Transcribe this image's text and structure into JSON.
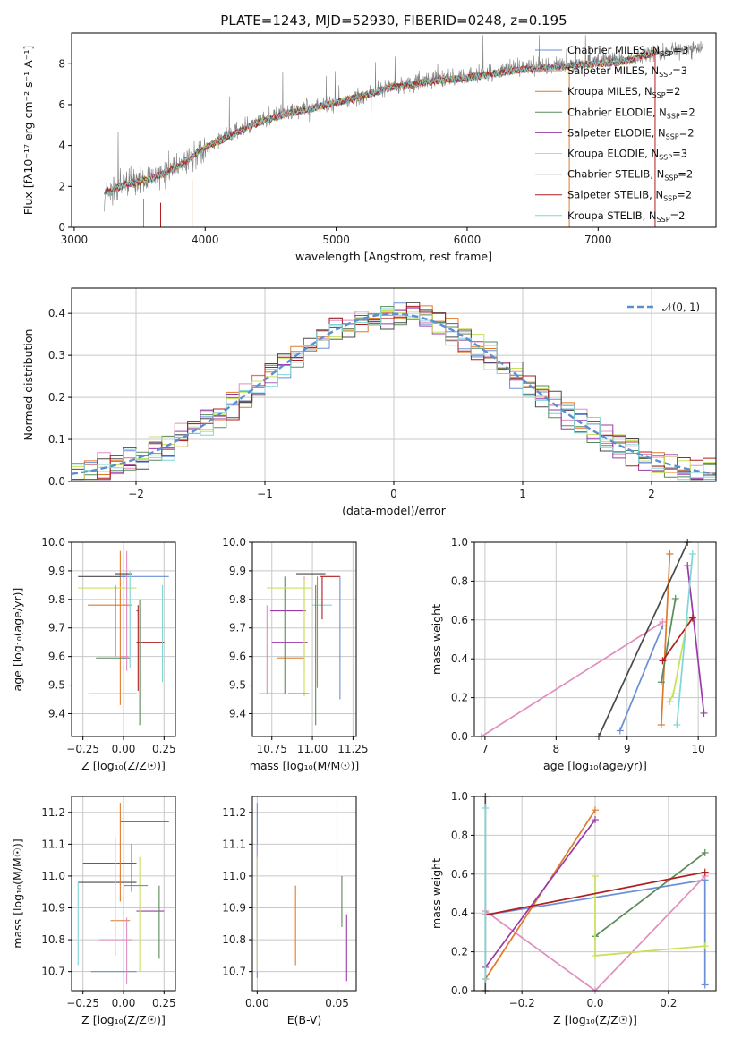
{
  "figure": {
    "title": "PLATE=1243, MJD=52930, FIBERID=0248, z=0.195"
  },
  "palette": {
    "Chabrier MILES": "#6a8fd6",
    "Salpeter MILES": "#e08fbf",
    "Kroupa MILES": "#e07a2a",
    "Chabrier ELODIE": "#5a8a5a",
    "Salpeter ELODIE": "#9a3aa8",
    "Kroupa ELODIE": "#c8e05a",
    "Chabrier STELIB": "#4a4a4a",
    "Salpeter STELIB": "#b01e1e",
    "Kroupa STELIB": "#7fd6d6",
    "observed": "#808080",
    "gaussian": "#5a8fd0",
    "grid": "#c8c8c8"
  },
  "legend": [
    {
      "name": "Chabrier MILES",
      "suffix": "=3"
    },
    {
      "name": "Salpeter MILES",
      "suffix": "=3"
    },
    {
      "name": "Kroupa MILES",
      "suffix": "=2"
    },
    {
      "name": "Chabrier ELODIE",
      "suffix": "=2"
    },
    {
      "name": "Salpeter ELODIE",
      "suffix": "=2"
    },
    {
      "name": "Kroupa ELODIE",
      "suffix": "=3"
    },
    {
      "name": "Chabrier STELIB",
      "suffix": "=2"
    },
    {
      "name": "Salpeter STELIB",
      "suffix": "=2"
    },
    {
      "name": "Kroupa STELIB",
      "suffix": "=2"
    }
  ],
  "chart_data": [
    {
      "id": "spectrum",
      "type": "line",
      "xlabel": "wavelength [Angstrom, rest frame]",
      "ylabel": "Flux [fλ10⁻¹⁷ erg cm⁻² s⁻¹ A⁻¹]",
      "xlim": [
        2980,
        7900
      ],
      "ylim": [
        0,
        9.5
      ],
      "xticks": [
        3000,
        4000,
        5000,
        6000,
        7000
      ],
      "yticks": [
        0,
        2,
        4,
        6,
        8
      ],
      "grid": false,
      "legend_loc": "upper right",
      "series": [
        {
          "name": "observed",
          "x": [
            3230,
            3400,
            3600,
            3800,
            4000,
            4200,
            4400,
            4600,
            4800,
            5000,
            5200,
            5400,
            5600,
            5800,
            6000,
            6200,
            6400,
            6600,
            6800,
            7000,
            7200,
            7400,
            7500,
            7600,
            7700,
            7800
          ],
          "values": [
            1.6,
            2.2,
            2.4,
            3.0,
            3.9,
            4.6,
            5.2,
            5.6,
            5.9,
            6.1,
            6.4,
            6.9,
            7.1,
            7.3,
            7.4,
            7.6,
            7.8,
            7.9,
            8.0,
            8.1,
            8.2,
            8.5,
            8.6,
            8.7,
            8.7,
            8.8
          ]
        },
        {
          "name": "model",
          "x": [
            3230,
            3400,
            3600,
            3800,
            4000,
            4200,
            4400,
            4600,
            4800,
            5000,
            5200,
            5400,
            5600,
            5800,
            6000,
            6200,
            6400,
            6600,
            6800,
            7000,
            7200,
            7400,
            7450
          ],
          "values": [
            1.7,
            2.1,
            2.4,
            3.0,
            3.9,
            4.5,
            5.1,
            5.5,
            5.8,
            6.1,
            6.4,
            6.8,
            7.0,
            7.2,
            7.3,
            7.5,
            7.7,
            7.8,
            7.9,
            8.0,
            8.1,
            8.5,
            8.6
          ]
        }
      ]
    },
    {
      "id": "residuals",
      "type": "line",
      "xlabel": "(data-model)/error",
      "ylabel": "Normed distribution",
      "xlim": [
        -2.5,
        2.5
      ],
      "ylim": [
        0,
        0.46
      ],
      "xticks": [
        -2,
        -1,
        0,
        1,
        2
      ],
      "yticks": [
        0.0,
        0.1,
        0.2,
        0.3,
        0.4
      ],
      "grid": true,
      "legend_loc": "upper right",
      "series": [
        {
          "name": "𝒩(0, 1)",
          "x": [
            -2.5,
            -2.0,
            -1.5,
            -1.0,
            -0.5,
            0,
            0.5,
            1.0,
            1.5,
            2.0,
            2.5
          ],
          "values": [
            0.018,
            0.054,
            0.13,
            0.242,
            0.352,
            0.399,
            0.352,
            0.242,
            0.13,
            0.054,
            0.018
          ]
        }
      ]
    },
    {
      "id": "age_vs_Z",
      "type": "scatter",
      "xlabel": "Z [log₁₀(Z/Z☉)]",
      "ylabel": "age  [log₁₀(age/yr)]",
      "xlim": [
        -0.32,
        0.32
      ],
      "ylim": [
        9.32,
        10.0
      ],
      "xticks": [
        -0.25,
        0.0,
        0.25
      ],
      "yticks": [
        9.4,
        9.5,
        9.6,
        9.7,
        9.8,
        9.9,
        10.0
      ],
      "grid": true
    },
    {
      "id": "age_vs_mass",
      "type": "scatter",
      "xlabel": "mass [log₁₀(M/M☉)]",
      "ylabel": "",
      "xlim": [
        10.63,
        11.27
      ],
      "ylim": [
        9.32,
        10.0
      ],
      "xticks": [
        10.75,
        11.0,
        11.25
      ],
      "yticks": [
        9.4,
        9.5,
        9.6,
        9.7,
        9.8,
        9.9,
        10.0
      ],
      "grid": true
    },
    {
      "id": "weight_vs_age",
      "type": "line",
      "xlabel": "age  [log₁₀(age/yr)]",
      "ylabel": "mass weight",
      "xlim": [
        6.85,
        10.25
      ],
      "ylim": [
        0,
        1.0
      ],
      "xticks": [
        7,
        8,
        9,
        10
      ],
      "yticks": [
        0.0,
        0.2,
        0.4,
        0.6,
        0.8,
        1.0
      ],
      "grid": true,
      "series": [
        {
          "name": "Chabrier MILES",
          "points": [
            [
              8.9,
              0.03
            ],
            [
              9.5,
              0.57
            ]
          ]
        },
        {
          "name": "Salpeter MILES",
          "points": [
            [
              6.95,
              0.0
            ],
            [
              9.5,
              0.59
            ]
          ]
        },
        {
          "name": "Kroupa MILES",
          "points": [
            [
              9.48,
              0.06
            ],
            [
              9.6,
              0.94
            ]
          ]
        },
        {
          "name": "Chabrier ELODIE",
          "points": [
            [
              9.48,
              0.28
            ],
            [
              9.68,
              0.71
            ]
          ]
        },
        {
          "name": "Salpeter ELODIE",
          "points": [
            [
              9.85,
              0.88
            ],
            [
              10.08,
              0.12
            ]
          ]
        },
        {
          "name": "Kroupa ELODIE",
          "points": [
            [
              9.6,
              0.18
            ],
            [
              9.65,
              0.22
            ],
            [
              9.85,
              0.6
            ]
          ]
        },
        {
          "name": "Chabrier STELIB",
          "points": [
            [
              8.6,
              0.0
            ],
            [
              9.85,
              1.0
            ]
          ]
        },
        {
          "name": "Salpeter STELIB",
          "points": [
            [
              9.5,
              0.39
            ],
            [
              9.92,
              0.61
            ]
          ]
        },
        {
          "name": "Kroupa STELIB",
          "points": [
            [
              9.7,
              0.06
            ],
            [
              9.92,
              0.94
            ]
          ]
        }
      ]
    },
    {
      "id": "mass_vs_Z",
      "type": "scatter",
      "xlabel": "Z [log₁₀(Z/Z☉)]",
      "ylabel": "mass [log₁₀(M/M☉)]",
      "xlim": [
        -0.32,
        0.32
      ],
      "ylim": [
        10.64,
        11.25
      ],
      "xticks": [
        -0.25,
        0.0,
        0.25
      ],
      "yticks": [
        10.7,
        10.8,
        10.9,
        11.0,
        11.1,
        11.2
      ],
      "grid": true
    },
    {
      "id": "mass_vs_EBV",
      "type": "scatter",
      "xlabel": "E(B-V)",
      "ylabel": "",
      "xlim": [
        -0.003,
        0.062
      ],
      "ylim": [
        10.64,
        11.25
      ],
      "xticks": [
        0.0,
        0.05
      ],
      "yticks": [
        10.7,
        10.8,
        10.9,
        11.0,
        11.1,
        11.2
      ],
      "grid": true
    },
    {
      "id": "weight_vs_Z",
      "type": "line",
      "xlabel": "Z [log₁₀(Z/Z☉)]",
      "ylabel": "mass weight",
      "xlim": [
        -0.33,
        0.33
      ],
      "ylim": [
        0,
        1.0
      ],
      "xticks": [
        -0.2,
        0.0,
        0.2
      ],
      "yticks": [
        0.0,
        0.2,
        0.4,
        0.6,
        0.8,
        1.0
      ],
      "grid": true,
      "series": [
        {
          "name": "Chabrier MILES",
          "points": [
            [
              -0.3,
              0.39
            ],
            [
              0.3,
              0.57
            ],
            [
              0.3,
              0.03
            ]
          ]
        },
        {
          "name": "Salpeter MILES",
          "points": [
            [
              -0.3,
              0.41
            ],
            [
              0.0,
              0.0
            ],
            [
              0.3,
              0.59
            ]
          ]
        },
        {
          "name": "Kroupa MILES",
          "points": [
            [
              -0.3,
              0.06
            ],
            [
              0.0,
              0.93
            ]
          ]
        },
        {
          "name": "Chabrier ELODIE",
          "points": [
            [
              0.0,
              0.28
            ],
            [
              0.3,
              0.71
            ]
          ]
        },
        {
          "name": "Salpeter ELODIE",
          "points": [
            [
              -0.3,
              0.12
            ],
            [
              0.0,
              0.88
            ]
          ]
        },
        {
          "name": "Kroupa ELODIE",
          "points": [
            [
              0.0,
              0.59
            ],
            [
              0.0,
              0.18
            ],
            [
              0.3,
              0.23
            ]
          ]
        },
        {
          "name": "Chabrier STELIB",
          "points": [
            [
              -0.3,
              0.0
            ],
            [
              -0.3,
              1.0
            ]
          ]
        },
        {
          "name": "Salpeter STELIB",
          "points": [
            [
              -0.3,
              0.39
            ],
            [
              0.3,
              0.61
            ]
          ]
        },
        {
          "name": "Kroupa STELIB",
          "points": [
            [
              -0.3,
              0.06
            ],
            [
              -0.3,
              0.94
            ]
          ]
        }
      ]
    }
  ]
}
